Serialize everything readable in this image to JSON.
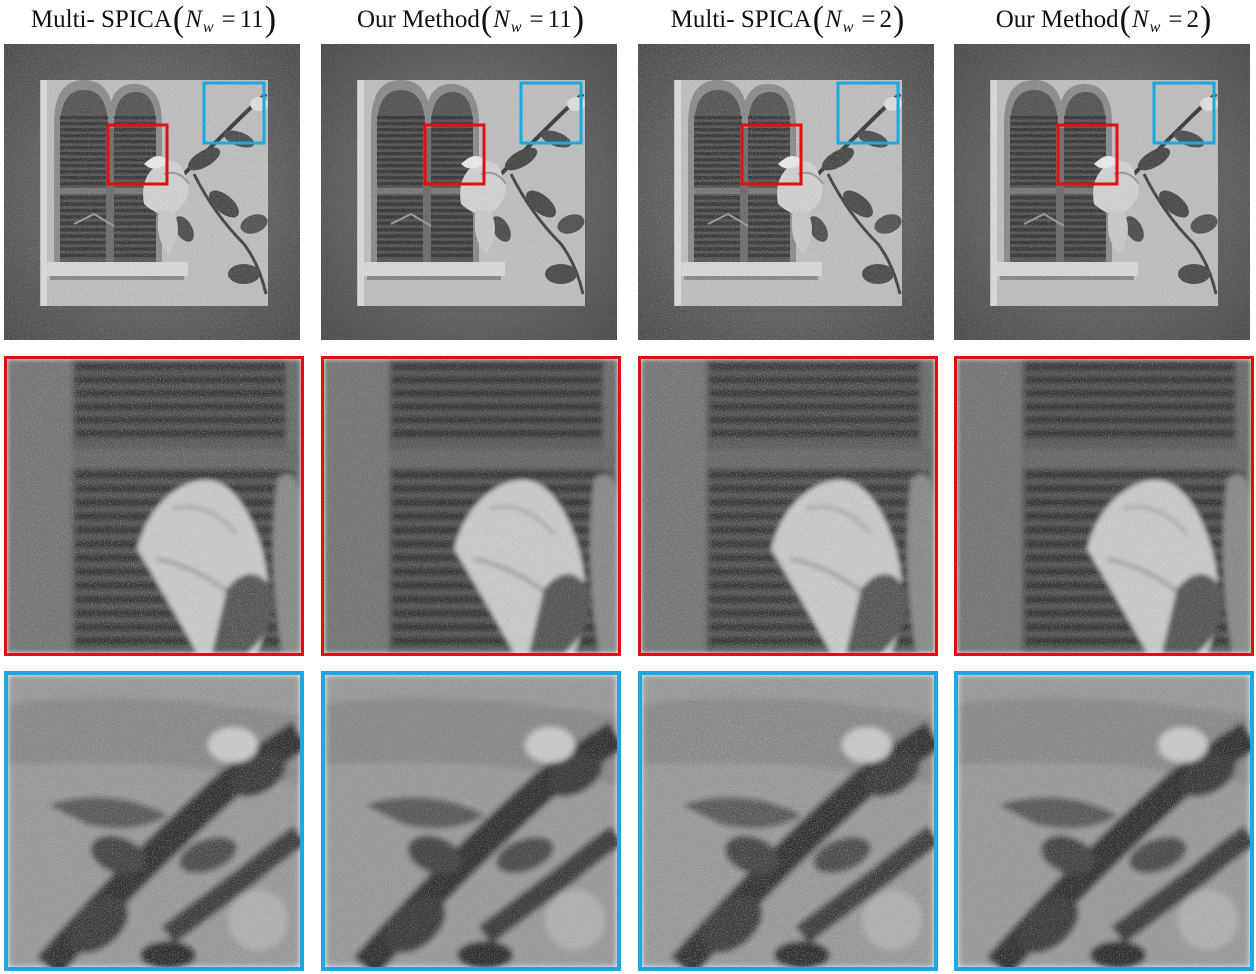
{
  "columns": [
    {
      "method": "Multi- SPICA",
      "var": "N",
      "sub": "w",
      "eq": "=",
      "value": "11",
      "noise_seed": 3,
      "noise_amp": 0.45
    },
    {
      "method": "Our Method",
      "var": "N",
      "sub": "w",
      "eq": "=",
      "value": "11",
      "noise_seed": 7,
      "noise_amp": 0.3
    },
    {
      "method": "Multi- SPICA",
      "var": "N",
      "sub": "w",
      "eq": "=",
      "value": "2",
      "noise_seed": 11,
      "noise_amp": 0.5
    },
    {
      "method": "Our Method",
      "var": "N",
      "sub": "w",
      "eq": "=",
      "value": "2",
      "noise_seed": 13,
      "noise_amp": 0.35
    }
  ],
  "colors": {
    "red_box": "#e01010",
    "blue_box": "#1aa9e0",
    "background": "#ffffff"
  },
  "images": {
    "main": "grayscale window with arched shutters and hibiscus flower",
    "zoom_red": "shutter slats and flower petal close-up",
    "zoom_blue": "leaves and branch close-up"
  }
}
